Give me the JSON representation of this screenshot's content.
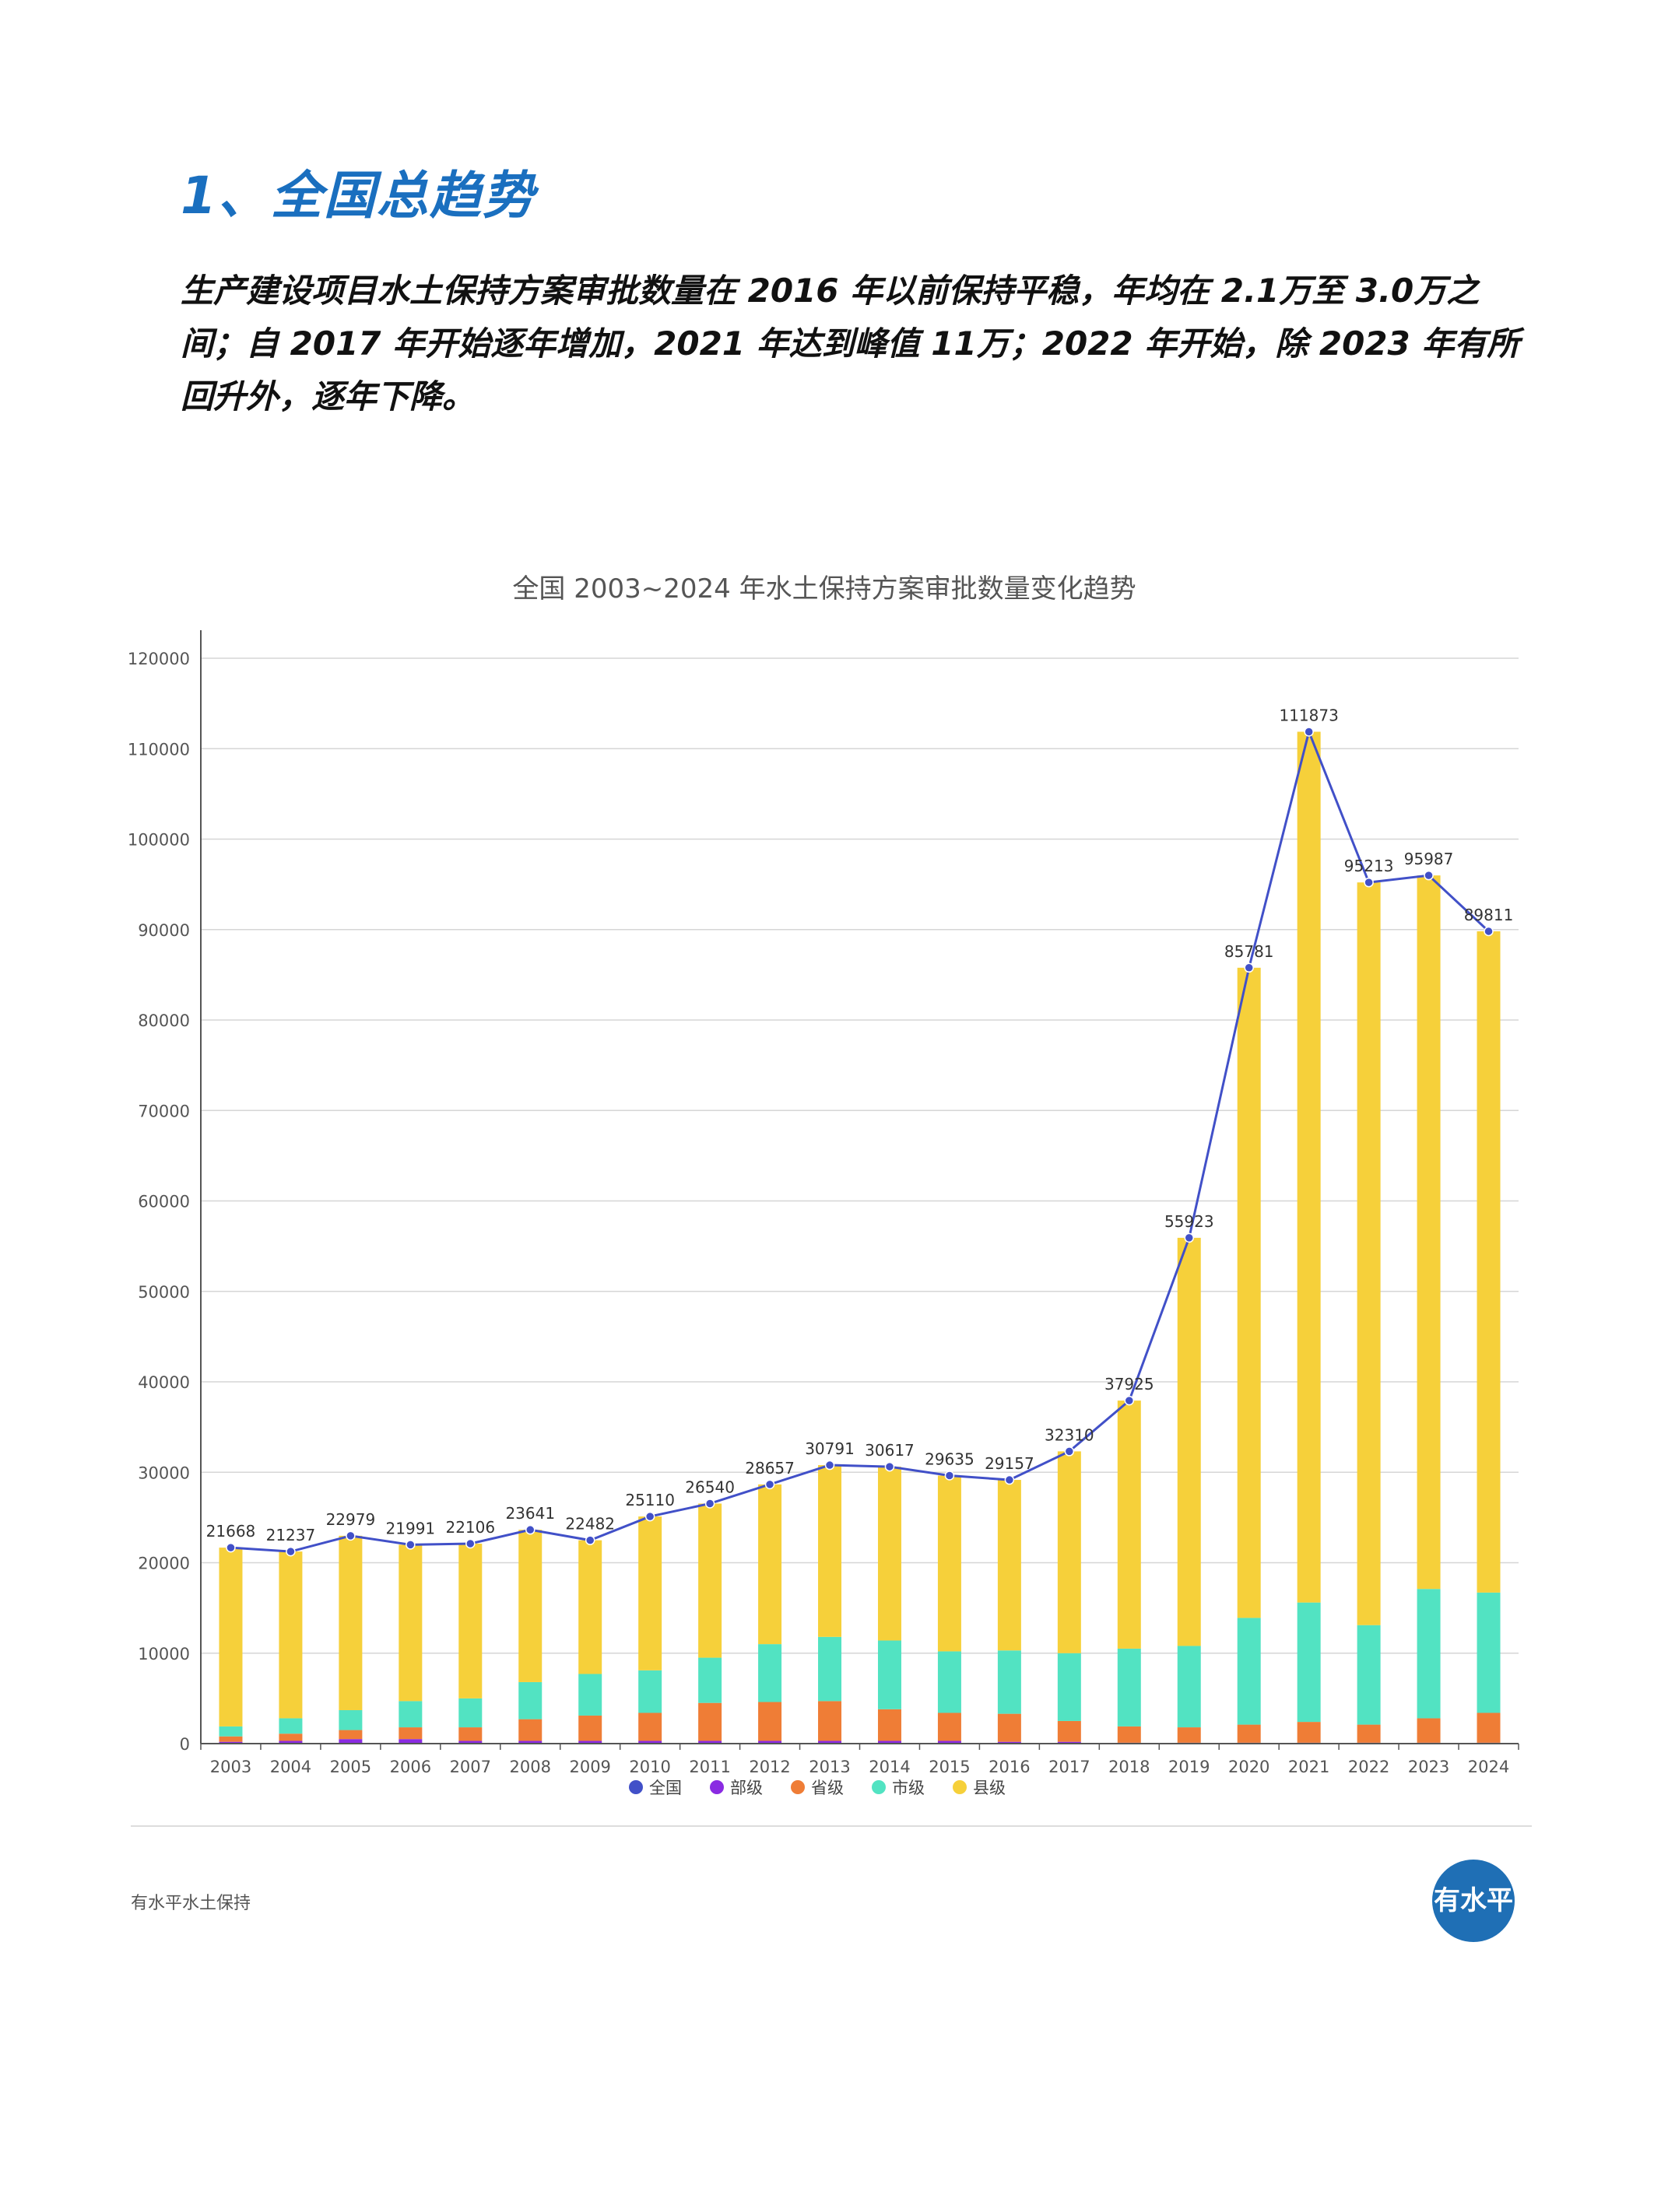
{
  "heading": "1、全国总趋势",
  "paragraph": "生产建设项目水土保持方案审批数量在 2016 年以前保持平稳，年均在 2.1万至 3.0万之间；自 2017 年开始逐年增加，2021 年达到峰值 11万；2022 年开始，除 2023 年有所回升外，逐年下降。",
  "footer": {
    "source": "有水平水土保持",
    "logo_text": "有水平"
  },
  "colors": {
    "全国": "#4150c8",
    "部级": "#8a2be2",
    "省级": "#ef7d36",
    "市级": "#52e3c2",
    "县级": "#f6d03a"
  },
  "chart_data": {
    "type": "bar+line",
    "title": "全国 2003~2024 年水土保持方案审批数量变化趋势",
    "categories": [
      "2003",
      "2004",
      "2005",
      "2006",
      "2007",
      "2008",
      "2009",
      "2010",
      "2011",
      "2012",
      "2013",
      "2014",
      "2015",
      "2016",
      "2017",
      "2018",
      "2019",
      "2020",
      "2021",
      "2022",
      "2023",
      "2024"
    ],
    "ylim": [
      0,
      120000
    ],
    "yticks": [
      0,
      10000,
      20000,
      30000,
      40000,
      50000,
      60000,
      70000,
      80000,
      90000,
      100000,
      110000,
      120000
    ],
    "legend": [
      "全国",
      "部级",
      "省级",
      "市级",
      "县级"
    ],
    "legend_position": "bottom",
    "stacked_series": [
      {
        "name": "部级",
        "values": [
          200,
          300,
          500,
          500,
          300,
          300,
          300,
          300,
          300,
          300,
          300,
          300,
          300,
          200,
          200,
          100,
          100,
          100,
          100,
          100,
          100,
          100
        ]
      },
      {
        "name": "省级",
        "values": [
          600,
          800,
          1000,
          1300,
          1500,
          2400,
          2800,
          3100,
          4200,
          4300,
          4400,
          3500,
          3100,
          3100,
          2300,
          1800,
          1700,
          2000,
          2300,
          2000,
          2700,
          3300
        ]
      },
      {
        "name": "市级",
        "values": [
          1100,
          1700,
          2200,
          2900,
          3200,
          4100,
          4600,
          4700,
          5000,
          6400,
          7100,
          7600,
          6800,
          7000,
          7500,
          8600,
          9000,
          11800,
          13200,
          11000,
          14300,
          13300
        ]
      },
      {
        "name": "县级",
        "values": [
          19768,
          18437,
          19279,
          17291,
          17106,
          16841,
          14782,
          17010,
          17040,
          17657,
          18991,
          19217,
          19435,
          18857,
          22310,
          27425,
          45123,
          71881,
          96273,
          82113,
          78887,
          73111
        ]
      }
    ],
    "line_series": {
      "name": "全国",
      "values": [
        21668,
        21237,
        22979,
        21991,
        22106,
        23641,
        22482,
        25110,
        26540,
        28657,
        30791,
        30617,
        29635,
        29157,
        32310,
        37925,
        55923,
        85781,
        111873,
        95213,
        95987,
        89811
      ]
    }
  }
}
